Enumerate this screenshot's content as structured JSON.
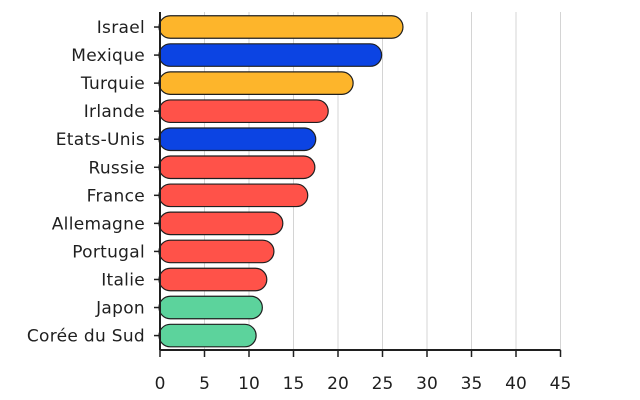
{
  "chart_data": {
    "type": "bar",
    "orientation": "horizontal",
    "title": "",
    "xlabel": "",
    "ylabel": "",
    "categories": [
      "Israel",
      "Mexique",
      "Turquie",
      "Irlande",
      "Etats-Unis",
      "Russie",
      "France",
      "Allemagne",
      "Portugal",
      "Italie",
      "Japon",
      "Corée du Sud"
    ],
    "values": [
      27.3,
      24.9,
      21.7,
      18.9,
      17.5,
      17.4,
      16.6,
      13.8,
      12.8,
      12.0,
      11.5,
      10.8
    ],
    "colors": [
      "#FDB52B",
      "#0C44E3",
      "#FDB52B",
      "#FF5249",
      "#0C44E3",
      "#FF5249",
      "#FF5249",
      "#FF5249",
      "#FF5249",
      "#FF5249",
      "#5CD39C",
      "#5CD39C"
    ],
    "xlim": [
      0,
      45
    ],
    "xticks": [
      "0",
      "5",
      "10",
      "15",
      "20",
      "25",
      "30",
      "35",
      "40",
      "45"
    ],
    "grid": true,
    "legend": "none"
  }
}
